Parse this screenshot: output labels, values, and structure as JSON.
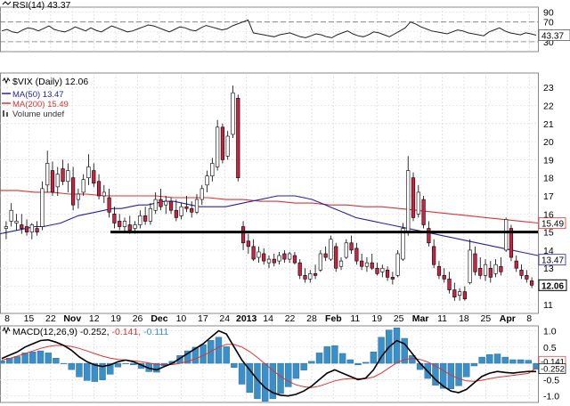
{
  "rsi": {
    "label_name": "RSI(14)",
    "label_value": "43.37",
    "ticks": [
      "90",
      "70",
      "50",
      "30"
    ],
    "last_value": "43.37",
    "upper": 70,
    "lower": 30,
    "series": [
      52,
      55,
      50,
      48,
      54,
      58,
      56,
      52,
      57,
      62,
      55,
      52,
      50,
      54,
      60,
      56,
      52,
      58,
      53,
      50,
      56,
      62,
      58,
      54,
      50,
      52,
      56,
      60,
      64,
      62,
      58,
      54,
      50,
      55,
      60,
      58,
      54,
      52,
      58,
      63,
      60,
      57,
      54,
      56,
      62,
      66,
      70,
      74,
      48,
      46,
      44,
      42,
      40,
      44,
      46,
      48,
      44,
      40,
      38,
      42,
      46,
      44,
      40,
      38,
      44,
      48,
      52,
      46,
      42,
      40,
      44,
      50,
      48,
      44,
      40,
      46,
      52,
      58,
      70,
      66,
      60,
      56,
      52,
      50,
      48,
      46,
      50,
      54,
      52,
      48,
      46,
      44,
      42,
      50,
      54,
      58,
      52,
      48,
      46,
      44,
      48,
      46,
      43.37
    ]
  },
  "price": {
    "symbol": "$VIX (Daily) 12.06",
    "ma50_label": "MA(50) 13.47",
    "ma200_label": "MA(200) 15.49",
    "volume_label": "Volume undef",
    "y_ticks": [
      "23",
      "22",
      "21",
      "20",
      "19",
      "18",
      "17",
      "16",
      "15",
      "14",
      "13",
      "12",
      "11"
    ],
    "last_price": "12.06",
    "ma50_last": "13.47",
    "ma200_last": "15.49",
    "price_line_15": "15"
  },
  "x_axis": [
    "8",
    "15",
    "22",
    "Nov",
    "12",
    "19",
    "26",
    "Dec",
    "10",
    "17",
    "24",
    "2013",
    "14",
    "22",
    "28",
    "Feb",
    "11",
    "19",
    "25",
    "Mar",
    "11",
    "18",
    "25",
    "Apr",
    "8"
  ],
  "macd": {
    "label_name": "MACD(12,26,9)",
    "macd_value": "-0.252",
    "signal_value": "-0.141",
    "hist_value": "-0.111",
    "ticks": [
      "1.0",
      "0.5",
      "0.0",
      "-0.5",
      "-1.0"
    ],
    "right_labels": [
      "-0.141",
      "-0.252"
    ]
  },
  "colors": {
    "up": "#ffffff",
    "down": "#cc2244",
    "ma50": "#2222aa",
    "ma200": "#dd3333",
    "macd_line": "#000000",
    "signal_line": "#dd3333",
    "hist": "#3a8fc8",
    "rsi_line": "#222222"
  },
  "chart_data": {
    "type": "line",
    "title": "$VIX (Daily) 12.06",
    "ylim": [
      10.5,
      23.5
    ],
    "candles": [
      {
        "o": 15.2,
        "h": 15.6,
        "l": 14.6,
        "c": 15.3
      },
      {
        "o": 15.6,
        "h": 16.6,
        "l": 15.3,
        "c": 16.2
      },
      {
        "o": 15.5,
        "h": 16.0,
        "l": 15.1,
        "c": 15.6
      },
      {
        "o": 15.4,
        "h": 16.0,
        "l": 14.9,
        "c": 15.2
      },
      {
        "o": 15.3,
        "h": 15.7,
        "l": 14.8,
        "c": 15.0
      },
      {
        "o": 15.0,
        "h": 15.5,
        "l": 14.6,
        "c": 15.4
      },
      {
        "o": 15.2,
        "h": 15.6,
        "l": 14.8,
        "c": 15.0
      },
      {
        "o": 15.3,
        "h": 17.8,
        "l": 15.1,
        "c": 17.4
      },
      {
        "o": 17.6,
        "h": 19.5,
        "l": 17.2,
        "c": 18.8
      },
      {
        "o": 18.4,
        "h": 18.9,
        "l": 17.0,
        "c": 17.2
      },
      {
        "o": 17.5,
        "h": 18.6,
        "l": 17.0,
        "c": 18.2
      },
      {
        "o": 18.5,
        "h": 19.0,
        "l": 17.6,
        "c": 17.8
      },
      {
        "o": 17.8,
        "h": 18.8,
        "l": 17.2,
        "c": 18.4
      },
      {
        "o": 18.0,
        "h": 18.6,
        "l": 16.2,
        "c": 16.5
      },
      {
        "o": 16.8,
        "h": 17.4,
        "l": 16.3,
        "c": 17.1
      },
      {
        "o": 17.2,
        "h": 18.2,
        "l": 17.0,
        "c": 17.9
      },
      {
        "o": 18.0,
        "h": 19.3,
        "l": 17.6,
        "c": 18.6
      },
      {
        "o": 18.4,
        "h": 18.8,
        "l": 17.5,
        "c": 17.7
      },
      {
        "o": 17.8,
        "h": 18.2,
        "l": 16.8,
        "c": 17.0
      },
      {
        "o": 17.0,
        "h": 17.6,
        "l": 16.6,
        "c": 17.2
      },
      {
        "o": 16.9,
        "h": 17.4,
        "l": 15.8,
        "c": 16.1
      },
      {
        "o": 16.0,
        "h": 16.4,
        "l": 15.2,
        "c": 15.5
      },
      {
        "o": 15.6,
        "h": 16.0,
        "l": 15.1,
        "c": 15.3
      },
      {
        "o": 15.3,
        "h": 15.8,
        "l": 15.0,
        "c": 15.6
      },
      {
        "o": 15.4,
        "h": 15.9,
        "l": 14.9,
        "c": 15.1
      },
      {
        "o": 15.2,
        "h": 15.6,
        "l": 14.9,
        "c": 15.4
      },
      {
        "o": 15.4,
        "h": 16.2,
        "l": 15.2,
        "c": 15.9
      },
      {
        "o": 15.9,
        "h": 16.4,
        "l": 15.4,
        "c": 15.6
      },
      {
        "o": 15.6,
        "h": 16.6,
        "l": 15.4,
        "c": 16.3
      },
      {
        "o": 16.2,
        "h": 17.2,
        "l": 16.0,
        "c": 16.8
      },
      {
        "o": 16.8,
        "h": 17.4,
        "l": 16.2,
        "c": 16.4
      },
      {
        "o": 16.5,
        "h": 17.0,
        "l": 16.0,
        "c": 16.7
      },
      {
        "o": 16.7,
        "h": 16.9,
        "l": 16.0,
        "c": 16.2
      },
      {
        "o": 16.2,
        "h": 16.8,
        "l": 15.6,
        "c": 15.8
      },
      {
        "o": 15.9,
        "h": 16.6,
        "l": 15.7,
        "c": 16.4
      },
      {
        "o": 16.4,
        "h": 17.0,
        "l": 16.1,
        "c": 16.3
      },
      {
        "o": 16.3,
        "h": 16.7,
        "l": 15.8,
        "c": 16.1
      },
      {
        "o": 16.1,
        "h": 17.1,
        "l": 16.0,
        "c": 16.8
      },
      {
        "o": 16.8,
        "h": 17.6,
        "l": 16.5,
        "c": 17.4
      },
      {
        "o": 17.6,
        "h": 18.4,
        "l": 17.2,
        "c": 18.1
      },
      {
        "o": 18.1,
        "h": 19.1,
        "l": 17.8,
        "c": 18.8
      },
      {
        "o": 18.6,
        "h": 21.2,
        "l": 18.4,
        "c": 20.8
      },
      {
        "o": 20.8,
        "h": 21.0,
        "l": 18.8,
        "c": 19.0
      },
      {
        "o": 19.2,
        "h": 20.6,
        "l": 19.0,
        "c": 20.3
      },
      {
        "o": 20.4,
        "h": 23.1,
        "l": 20.2,
        "c": 22.7
      },
      {
        "o": 22.4,
        "h": 22.6,
        "l": 17.8,
        "c": 18.0
      },
      {
        "o": 15.3,
        "h": 15.6,
        "l": 14.0,
        "c": 14.4
      },
      {
        "o": 14.5,
        "h": 14.9,
        "l": 13.8,
        "c": 14.2
      },
      {
        "o": 14.2,
        "h": 14.6,
        "l": 13.4,
        "c": 13.5
      },
      {
        "o": 13.6,
        "h": 14.2,
        "l": 13.3,
        "c": 13.9
      },
      {
        "o": 13.8,
        "h": 14.1,
        "l": 13.2,
        "c": 13.4
      },
      {
        "o": 13.3,
        "h": 13.7,
        "l": 13.0,
        "c": 13.5
      },
      {
        "o": 13.5,
        "h": 13.8,
        "l": 13.1,
        "c": 13.3
      },
      {
        "o": 13.4,
        "h": 13.9,
        "l": 13.2,
        "c": 13.7
      },
      {
        "o": 13.8,
        "h": 14.0,
        "l": 13.3,
        "c": 13.5
      },
      {
        "o": 13.5,
        "h": 13.9,
        "l": 13.3,
        "c": 13.8
      },
      {
        "o": 13.7,
        "h": 13.9,
        "l": 13.2,
        "c": 13.3
      },
      {
        "o": 13.3,
        "h": 13.5,
        "l": 12.4,
        "c": 12.6
      },
      {
        "o": 12.6,
        "h": 13.0,
        "l": 12.2,
        "c": 12.4
      },
      {
        "o": 12.4,
        "h": 12.9,
        "l": 12.2,
        "c": 12.7
      },
      {
        "o": 12.7,
        "h": 13.2,
        "l": 12.4,
        "c": 12.6
      },
      {
        "o": 12.9,
        "h": 14.0,
        "l": 12.8,
        "c": 13.8
      },
      {
        "o": 13.8,
        "h": 14.2,
        "l": 13.4,
        "c": 13.6
      },
      {
        "o": 13.5,
        "h": 14.8,
        "l": 13.4,
        "c": 14.6
      },
      {
        "o": 14.2,
        "h": 14.4,
        "l": 12.8,
        "c": 13.0
      },
      {
        "o": 13.1,
        "h": 13.6,
        "l": 12.9,
        "c": 13.4
      },
      {
        "o": 13.6,
        "h": 14.6,
        "l": 13.5,
        "c": 14.4
      },
      {
        "o": 14.4,
        "h": 14.8,
        "l": 13.8,
        "c": 14.0
      },
      {
        "o": 14.1,
        "h": 14.4,
        "l": 13.2,
        "c": 13.4
      },
      {
        "o": 13.4,
        "h": 13.8,
        "l": 12.9,
        "c": 13.1
      },
      {
        "o": 13.1,
        "h": 13.6,
        "l": 12.8,
        "c": 13.3
      },
      {
        "o": 13.3,
        "h": 13.8,
        "l": 12.9,
        "c": 13.0
      },
      {
        "o": 13.0,
        "h": 13.3,
        "l": 12.6,
        "c": 12.7
      },
      {
        "o": 12.8,
        "h": 13.2,
        "l": 12.5,
        "c": 13.0
      },
      {
        "o": 12.9,
        "h": 13.1,
        "l": 12.3,
        "c": 12.5
      },
      {
        "o": 12.5,
        "h": 12.8,
        "l": 12.1,
        "c": 12.4
      },
      {
        "o": 12.6,
        "h": 14.0,
        "l": 12.5,
        "c": 13.8
      },
      {
        "o": 13.5,
        "h": 15.5,
        "l": 13.4,
        "c": 15.2
      },
      {
        "o": 15.0,
        "h": 19.2,
        "l": 14.8,
        "c": 18.4
      },
      {
        "o": 18.0,
        "h": 18.3,
        "l": 15.6,
        "c": 15.8
      },
      {
        "o": 16.0,
        "h": 17.6,
        "l": 15.8,
        "c": 17.2
      },
      {
        "o": 16.8,
        "h": 17.0,
        "l": 15.2,
        "c": 15.4
      },
      {
        "o": 15.2,
        "h": 15.6,
        "l": 14.2,
        "c": 14.4
      },
      {
        "o": 14.2,
        "h": 14.6,
        "l": 13.0,
        "c": 13.2
      },
      {
        "o": 13.1,
        "h": 13.4,
        "l": 12.4,
        "c": 12.6
      },
      {
        "o": 12.6,
        "h": 13.0,
        "l": 12.2,
        "c": 12.4
      },
      {
        "o": 12.4,
        "h": 12.8,
        "l": 11.6,
        "c": 11.8
      },
      {
        "o": 11.8,
        "h": 12.2,
        "l": 11.2,
        "c": 11.4
      },
      {
        "o": 11.5,
        "h": 11.9,
        "l": 11.2,
        "c": 11.7
      },
      {
        "o": 11.7,
        "h": 12.0,
        "l": 11.2,
        "c": 11.3
      },
      {
        "o": 12.2,
        "h": 14.6,
        "l": 12.1,
        "c": 14.0
      },
      {
        "o": 13.8,
        "h": 14.2,
        "l": 12.6,
        "c": 12.8
      },
      {
        "o": 13.0,
        "h": 13.6,
        "l": 12.4,
        "c": 12.6
      },
      {
        "o": 12.6,
        "h": 13.5,
        "l": 12.3,
        "c": 13.2
      },
      {
        "o": 13.0,
        "h": 13.4,
        "l": 12.2,
        "c": 12.5
      },
      {
        "o": 12.7,
        "h": 13.5,
        "l": 12.5,
        "c": 13.2
      },
      {
        "o": 13.1,
        "h": 13.6,
        "l": 12.6,
        "c": 12.8
      },
      {
        "o": 14.0,
        "h": 15.8,
        "l": 13.9,
        "c": 15.7
      },
      {
        "o": 15.2,
        "h": 15.4,
        "l": 13.4,
        "c": 13.6
      },
      {
        "o": 13.4,
        "h": 13.7,
        "l": 12.8,
        "c": 13.0
      },
      {
        "o": 12.9,
        "h": 13.2,
        "l": 12.4,
        "c": 12.6
      },
      {
        "o": 12.6,
        "h": 12.9,
        "l": 12.2,
        "c": 12.4
      },
      {
        "o": 12.3,
        "h": 12.5,
        "l": 11.9,
        "c": 12.06
      }
    ],
    "ma50": [
      14.9,
      15.0,
      15.1,
      15.2,
      15.3,
      15.3,
      15.4,
      15.5,
      15.7,
      15.9,
      16.0,
      16.1,
      16.2,
      16.3,
      16.3,
      16.4,
      16.5,
      16.5,
      16.6,
      16.7,
      16.7,
      16.6,
      16.5,
      16.4,
      16.4,
      16.4,
      16.4,
      16.5,
      16.6,
      16.7,
      16.8,
      16.9,
      17.0,
      17.0,
      17.0,
      16.9,
      16.8,
      16.6,
      16.4,
      16.2,
      16.0,
      15.8,
      15.7,
      15.6,
      15.5,
      15.4,
      15.3,
      15.2,
      15.1,
      15.0,
      14.9,
      14.8,
      14.7,
      14.6,
      14.5,
      14.4,
      14.3,
      14.2,
      14.1,
      14.0,
      13.9,
      13.8,
      13.7
    ],
    "ma200": [
      17.3,
      17.3,
      17.2,
      17.2,
      17.1,
      17.1,
      17.0,
      17.0,
      17.0,
      17.0,
      16.9,
      16.9,
      16.9,
      16.8,
      16.8,
      16.7,
      16.7,
      16.6,
      16.6,
      16.5,
      16.5,
      16.4,
      16.4,
      16.3,
      16.2,
      16.1,
      16.0,
      15.9,
      15.8,
      15.7,
      15.6,
      15.5
    ],
    "resistance_level": 15.0,
    "macd": [
      0.15,
      0.25,
      0.35,
      0.5,
      0.6,
      0.7,
      0.72,
      0.65,
      0.55,
      0.4,
      0.2,
      0.05,
      -0.05,
      -0.1,
      -0.05,
      0.05,
      0.1,
      0.05,
      -0.05,
      -0.15,
      -0.2,
      -0.1,
      0.0,
      0.15,
      0.3,
      0.45,
      0.6,
      0.8,
      1.0,
      0.9,
      0.5,
      0.1,
      -0.2,
      -0.5,
      -0.75,
      -0.9,
      -0.98,
      -1.0,
      -0.95,
      -0.85,
      -0.7,
      -0.5,
      -0.3,
      -0.2,
      -0.3,
      -0.4,
      -0.5,
      -0.45,
      -0.2,
      0.2,
      0.5,
      0.7,
      0.6,
      0.3,
      0.0,
      -0.25,
      -0.5,
      -0.7,
      -0.85,
      -0.9,
      -0.8,
      -0.6,
      -0.4,
      -0.3,
      -0.25,
      -0.28,
      -0.3,
      -0.27,
      -0.25,
      -0.252
    ],
    "signal": [
      0.1,
      0.15,
      0.22,
      0.3,
      0.38,
      0.46,
      0.52,
      0.55,
      0.55,
      0.52,
      0.46,
      0.38,
      0.3,
      0.22,
      0.16,
      0.12,
      0.1,
      0.08,
      0.05,
      0.01,
      -0.03,
      -0.05,
      -0.04,
      0.0,
      0.06,
      0.14,
      0.24,
      0.36,
      0.5,
      0.58,
      0.58,
      0.5,
      0.36,
      0.18,
      -0.02,
      -0.22,
      -0.4,
      -0.55,
      -0.66,
      -0.72,
      -0.74,
      -0.7,
      -0.62,
      -0.54,
      -0.49,
      -0.47,
      -0.47,
      -0.47,
      -0.42,
      -0.3,
      -0.14,
      0.02,
      0.12,
      0.15,
      0.12,
      0.04,
      -0.08,
      -0.22,
      -0.36,
      -0.47,
      -0.54,
      -0.55,
      -0.52,
      -0.47,
      -0.43,
      -0.4,
      -0.37,
      -0.34,
      -0.31,
      -0.141
    ]
  }
}
